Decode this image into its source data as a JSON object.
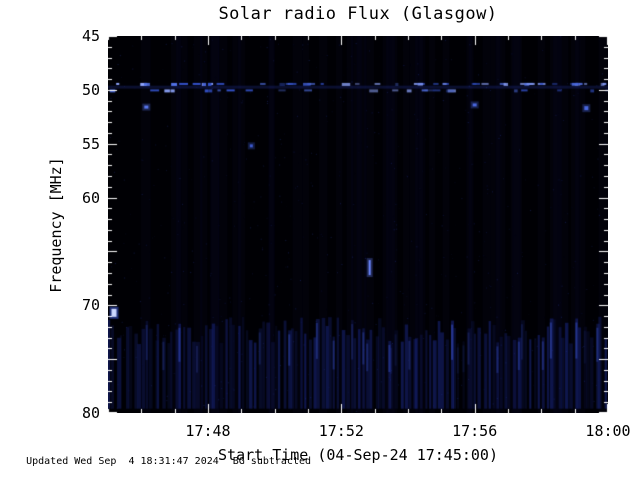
{
  "chart_data": {
    "type": "heatmap",
    "title": "Solar radio Flux (Glasgow)",
    "xlabel": "Start Time (04-Sep-24 17:45:00)",
    "ylabel": "Frequency [MHz]",
    "ylim": [
      45,
      80
    ],
    "y_inverted": true,
    "x_range_minutes": [
      0,
      15
    ],
    "x_ticks": [
      {
        "t_min": 3,
        "label": "17:48"
      },
      {
        "t_min": 7,
        "label": "17:52"
      },
      {
        "t_min": 11,
        "label": "17:56"
      },
      {
        "t_min": 15,
        "label": "18:00"
      }
    ],
    "x_minor_step_min": 1,
    "y_ticks": [
      {
        "f": 45,
        "label": "45"
      },
      {
        "f": 50,
        "label": "50"
      },
      {
        "f": 55,
        "label": "55"
      },
      {
        "f": 60,
        "label": "60"
      },
      {
        "f": 65,
        "label": ""
      },
      {
        "f": 70,
        "label": "70"
      },
      {
        "f": 75,
        "label": ""
      },
      {
        "f": 80,
        "label": "80"
      }
    ],
    "y_minor_step_mhz": 1,
    "background": "#000004",
    "tick_color": "#ffffff",
    "features": {
      "speckle": {
        "count": 700,
        "rgb": [
          45,
          65,
          175
        ],
        "alpha_max": 0.4
      },
      "column_noise": {
        "count": 46,
        "rgb": [
          30,
          45,
          130
        ],
        "alpha": 0.05
      },
      "horizontal_band": {
        "rows_mhz": [
          49.45,
          50.05
        ],
        "base_freq_mhz": 49.7,
        "base_rgba": [
          45,
          70,
          200,
          0.22
        ],
        "dash_count": 80,
        "dash_colors": [
          "#5272e8",
          "#8fa6ff",
          "#3351c8"
        ]
      },
      "points": [
        {
          "t": 1.15,
          "f": 51.6,
          "color": "#5a78f0",
          "w": 4,
          "h": 3
        },
        {
          "t": 4.3,
          "f": 55.2,
          "color": "#3d5ad0",
          "w": 3,
          "h": 3
        },
        {
          "t": 7.85,
          "f": 66.5,
          "color": "#6b86ff",
          "w": 2,
          "h": 15
        },
        {
          "t": 11.0,
          "f": 51.4,
          "color": "#4a68e0",
          "w": 4,
          "h": 3
        },
        {
          "t": 14.35,
          "f": 51.7,
          "color": "#4a68e0",
          "w": 4,
          "h": 4
        }
      ],
      "bright_spot": {
        "t": 0.18,
        "f": 70.7,
        "core": "#cdd9ff",
        "halo": "#3a58d8",
        "w": 5,
        "h": 8
      },
      "noise_curtain": {
        "f_top_min": 71.0,
        "f_top_max": 73.6,
        "f_bottom": 79.6,
        "stripe_count": 120,
        "rgb": [
          28,
          42,
          140
        ],
        "alpha_min": 0.12,
        "alpha_max": 0.55
      }
    }
  },
  "footer": {
    "updated": "Updated Wed Sep  4 18:31:47 2024",
    "note": "BG subtracted"
  }
}
